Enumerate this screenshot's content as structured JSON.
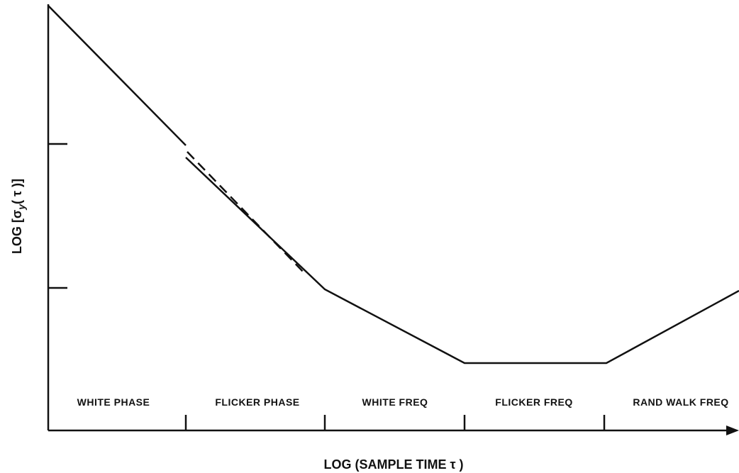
{
  "diagram": {
    "y_label": {
      "prefix": "LOG [σ",
      "sub": "y",
      "suffix": "( τ )]"
    },
    "x_label": "LOG (SAMPLE TIME  τ )",
    "regions": [
      "WHITE PHASE",
      "FLICKER PHASE",
      "WHITE FREQ",
      "FLICKER FREQ",
      "RAND  WALK FREQ"
    ]
  }
}
